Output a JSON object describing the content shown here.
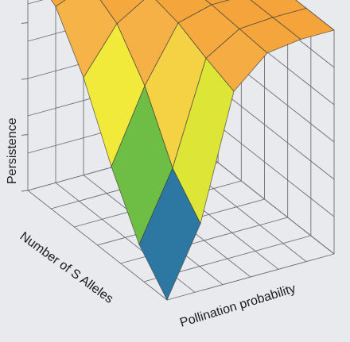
{
  "chart_data": {
    "type": "surface",
    "title": "",
    "xlabel": "Pollination probability",
    "ylabel": "Number of S Alleles",
    "zlabel": "Persistence",
    "show_tick_values": false,
    "grid": true,
    "x": [
      0,
      0.2,
      0.4,
      0.6,
      0.8,
      1.0
    ],
    "y": [
      0,
      0.2,
      0.4,
      0.6,
      0.8,
      1.0
    ],
    "z": [
      [
        0.0,
        0.3,
        0.85,
        0.98,
        1.0,
        1.0
      ],
      [
        0.15,
        0.45,
        0.9,
        0.99,
        1.0,
        1.0
      ],
      [
        0.4,
        0.72,
        0.96,
        1.0,
        1.0,
        1.0
      ],
      [
        0.7,
        0.9,
        0.99,
        1.0,
        1.0,
        1.0
      ],
      [
        0.92,
        0.98,
        1.0,
        1.0,
        1.0,
        1.0
      ],
      [
        1.0,
        1.0,
        1.0,
        1.0,
        1.0,
        1.0
      ]
    ],
    "zlim": [
      0,
      1
    ],
    "colormap": [
      "#1f2b8c",
      "#2a5fc1",
      "#2fa56b",
      "#9ccf2a",
      "#f2ee3a",
      "#f7b84c",
      "#f4a43a"
    ]
  }
}
